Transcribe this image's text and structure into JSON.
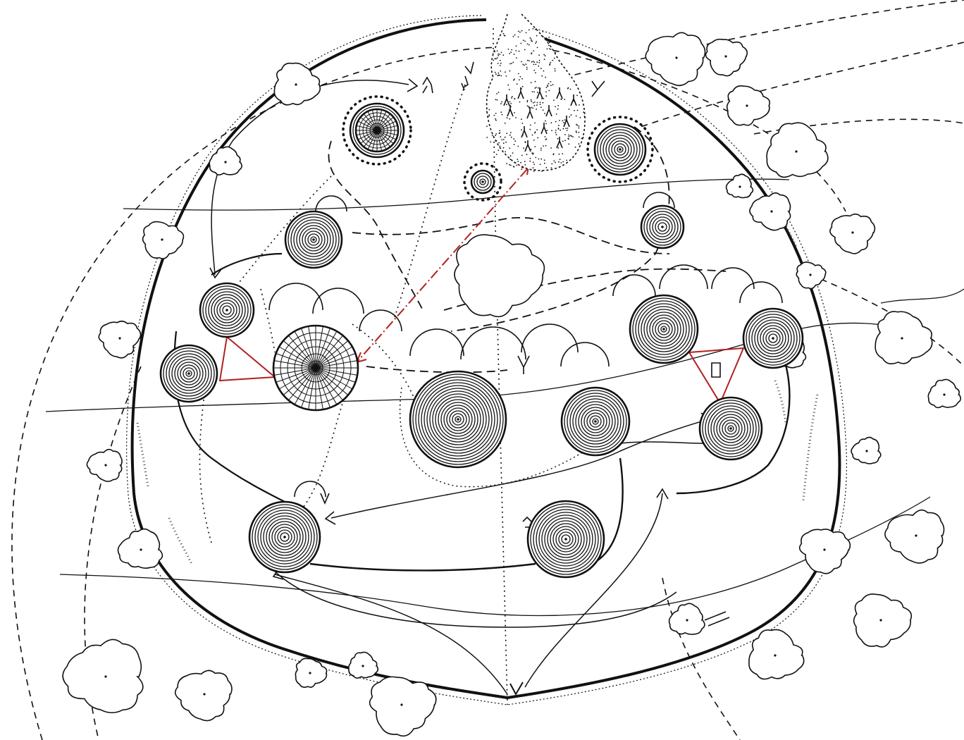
{
  "diagram": {
    "kind": "hand-drawn site plan sketch",
    "has_text": false,
    "colors": {
      "ink": "#111111",
      "accent": "#b3201f",
      "paper": "#ffffff",
      "texture": "#444444"
    },
    "elements": {
      "outer_boundary": "hedge-ring",
      "trees_outside": 24,
      "large_ringed_circles": 14,
      "radial_grid_circles": 2,
      "stippled_pond": 1,
      "red_triangles": 2,
      "red_dash_dot_line": 1,
      "entry_arrows": 2
    }
  }
}
